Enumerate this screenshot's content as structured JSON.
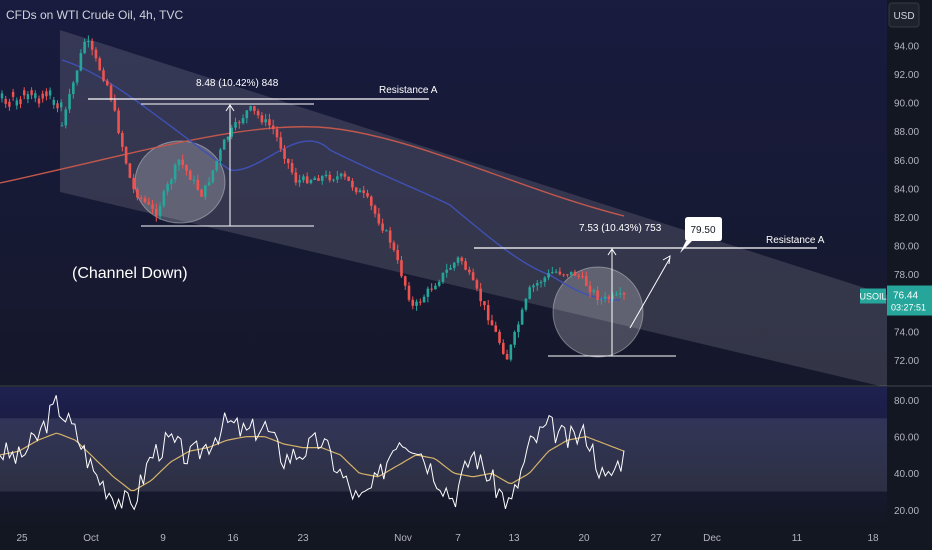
{
  "header": {
    "title": "CFDs on WTI Crude Oil, 4h, TVC",
    "currency": "USD"
  },
  "symbol": {
    "name": "USOIL",
    "price": "76.44",
    "countdown": "03:27:51"
  },
  "colors": {
    "background_top": "#191b3f",
    "background_bottom": "#131722",
    "up": "#26a69a",
    "down": "#ef5350",
    "ma_blue": "#3f51b5",
    "ma_red": "#c0574d",
    "rsi": "#ffffff",
    "rsi_ma": "#d4b26a"
  },
  "annotations": {
    "channel_label": "(Channel Down)",
    "range1_label": "8.48 (10.42%) 848",
    "range2_label": "7.53 (10.43%) 753",
    "resistance1": "Resistance A",
    "resistance2": "Resistance A",
    "target": "79.50"
  },
  "chart_data": [
    {
      "type": "candlestick",
      "title": "CFDs on WTI Crude Oil, 4h, TVC",
      "ylabel": "USD",
      "ylim": [
        70.6,
        96.0
      ],
      "y_ticks": [
        "94.00",
        "92.00",
        "90.00",
        "88.00",
        "86.00",
        "84.00",
        "82.00",
        "80.00",
        "78.00",
        "76.00",
        "74.00",
        "72.00"
      ],
      "x_ticks": [
        "25",
        "Oct",
        "9",
        "16",
        "23",
        "Nov",
        "7",
        "13",
        "20",
        "27",
        "Dec",
        "11",
        "18"
      ],
      "last_price": 76.44,
      "price_path": [
        {
          "x": "25",
          "y": 88.4
        },
        {
          "x": "28",
          "y": 94.5
        },
        {
          "x": "Oct",
          "y": 91.0
        },
        {
          "x": "5",
          "y": 84.0
        },
        {
          "x": "6",
          "y": 82.2
        },
        {
          "x": "9",
          "y": 86.0
        },
        {
          "x": "12",
          "y": 83.5
        },
        {
          "x": "16",
          "y": 87.5
        },
        {
          "x": "20",
          "y": 89.6
        },
        {
          "x": "23",
          "y": 88.2
        },
        {
          "x": "25",
          "y": 84.5
        },
        {
          "x": "30",
          "y": 84.8
        },
        {
          "x": "Nov",
          "y": 84.8
        },
        {
          "x": "5",
          "y": 83.3
        },
        {
          "x": "7",
          "y": 80.4
        },
        {
          "x": "10",
          "y": 75.6
        },
        {
          "x": "14",
          "y": 77.5
        },
        {
          "x": "16",
          "y": 79.2
        },
        {
          "x": "17",
          "y": 75.8
        },
        {
          "x": "18",
          "y": 72.1
        },
        {
          "x": "19",
          "y": 77.0
        },
        {
          "x": "21",
          "y": 78.2
        },
        {
          "x": "22",
          "y": 78.0
        },
        {
          "x": "23",
          "y": 76.2
        },
        {
          "x": "24",
          "y": 76.44
        }
      ],
      "series": [
        {
          "name": "",
          "values_note": "moving average (blue)"
        },
        {
          "name": "",
          "values_note": "moving average (red)"
        }
      ],
      "levels": [
        {
          "label": "Resistance A",
          "value": 90.1
        },
        {
          "label": "Resistance A",
          "value": 79.9
        }
      ],
      "measurements": [
        {
          "label": "8.48 (10.42%) 848",
          "from": 81.6,
          "to": 90.1
        },
        {
          "label": "7.53 (10.43%) 753",
          "from": 72.3,
          "to": 79.8
        }
      ],
      "target": 79.5
    },
    {
      "type": "line",
      "ylabel": "",
      "ylim": [
        18,
        82
      ],
      "y_ticks": [
        "80.00",
        "60.00",
        "40.00",
        "20.00"
      ],
      "band": [
        30,
        70
      ],
      "rsi_path": [
        52,
        48,
        60,
        78,
        62,
        40,
        28,
        22,
        50,
        58,
        48,
        56,
        68,
        62,
        66,
        48,
        52,
        58,
        40,
        24,
        36,
        60,
        56,
        40,
        26,
        52,
        36,
        22,
        55,
        66,
        58,
        62,
        35,
        50
      ],
      "rsi_ma_path": [
        50,
        52,
        58,
        62,
        58,
        48,
        38,
        30,
        36,
        46,
        52,
        54,
        58,
        60,
        60,
        56,
        54,
        54,
        50,
        40,
        38,
        44,
        50,
        48,
        40,
        38,
        40,
        34,
        40,
        52,
        58,
        60,
        56,
        52
      ]
    }
  ]
}
